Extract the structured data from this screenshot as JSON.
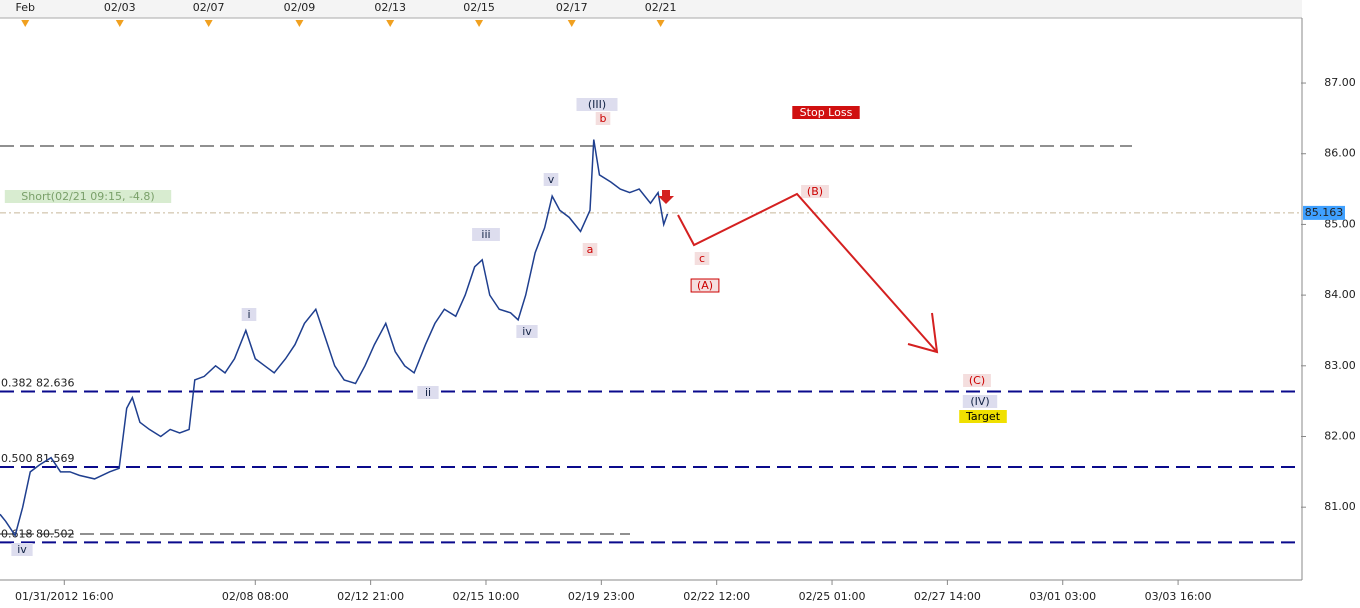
{
  "chart_data": {
    "type": "line",
    "x": [
      0,
      3,
      8,
      12,
      16,
      21,
      27,
      32,
      37,
      42,
      50,
      58,
      63,
      67,
      70,
      74,
      79,
      85,
      90,
      95,
      100,
      103,
      108,
      114,
      119,
      124,
      130,
      135,
      140,
      145,
      151,
      156,
      161,
      167,
      172,
      177,
      182,
      188,
      193,
      198,
      204,
      209,
      214,
      219,
      225,
      230,
      235,
      241,
      246,
      251,
      255,
      259,
      264,
      270,
      274,
      278,
      283,
      288,
      292,
      296,
      301,
      307,
      312,
      314,
      317,
      323,
      328,
      333,
      338,
      344,
      348,
      351,
      353
    ],
    "series": [
      {
        "color": "#1f3f8f",
        "values": [
          80.9,
          80.8,
          80.6,
          81.0,
          81.5,
          81.6,
          81.7,
          81.5,
          81.5,
          81.45,
          81.4,
          81.5,
          81.55,
          82.4,
          82.55,
          82.2,
          82.1,
          82.0,
          82.1,
          82.05,
          82.1,
          82.8,
          82.85,
          83.0,
          82.9,
          83.1,
          83.5,
          83.1,
          83.0,
          82.9,
          83.1,
          83.3,
          83.6,
          83.8,
          83.4,
          83.0,
          82.8,
          82.75,
          83.0,
          83.3,
          83.6,
          83.2,
          83.0,
          82.9,
          83.3,
          83.6,
          83.8,
          83.7,
          84.0,
          84.4,
          84.5,
          84.0,
          83.8,
          83.75,
          83.65,
          84.0,
          84.6,
          84.95,
          85.4,
          85.2,
          85.1,
          84.9,
          85.2,
          86.2,
          85.7,
          85.6,
          85.5,
          85.45,
          85.5,
          85.3,
          85.45,
          85.0,
          85.15
        ]
      }
    ],
    "xlim": [
      0,
      688
    ],
    "ylim": [
      79.97,
      87.92
    ],
    "yticks": [
      {
        "value": 81,
        "label": "81.00"
      },
      {
        "value": 82,
        "label": "82.00"
      },
      {
        "value": 83,
        "label": "83.00"
      },
      {
        "value": 84,
        "label": "84.00"
      },
      {
        "value": 85,
        "label": "85.00"
      },
      {
        "value": 86,
        "label": "86.00"
      },
      {
        "value": 87,
        "label": "87.00"
      }
    ],
    "xticks": [
      {
        "value": 34,
        "label": "01/31/2012 16:00"
      },
      {
        "value": 135,
        "label": "02/08 08:00"
      },
      {
        "value": 196,
        "label": "02/12 21:00"
      },
      {
        "value": 257,
        "label": "02/15 10:00"
      },
      {
        "value": 318,
        "label": "02/19 23:00"
      },
      {
        "value": 379,
        "label": "02/22 12:00"
      },
      {
        "value": 440,
        "label": "02/25 01:00"
      },
      {
        "value": 501,
        "label": "02/27 14:00"
      },
      {
        "value": 562,
        "label": "03/01 03:00"
      },
      {
        "value": 623,
        "label": "03/03 16:00"
      }
    ],
    "top_ticks": [
      {
        "value": 7,
        "label": "Feb"
      },
      {
        "value": 57,
        "label": "02/03"
      },
      {
        "value": 104,
        "label": "02/07"
      },
      {
        "value": 152,
        "label": "02/09"
      },
      {
        "value": 200,
        "label": "02/13"
      },
      {
        "value": 247,
        "label": "02/15"
      },
      {
        "value": 296,
        "label": "02/17"
      },
      {
        "value": 343,
        "label": "02/21"
      }
    ],
    "levels": [
      {
        "value": 82.636,
        "label": "0.382 82.636"
      },
      {
        "value": 81.569,
        "label": "0.500 81.569"
      },
      {
        "value": 80.502,
        "label": "0.618 80.502"
      }
    ],
    "current_price": {
      "value": 85.163,
      "label": "85.163"
    },
    "annotations": [
      "iv",
      "i",
      "ii",
      "iii",
      "iv",
      "v",
      "(III)",
      "b",
      "a",
      "c",
      "(A)",
      "(B)",
      "(C)",
      "(IV)",
      "Target",
      "Stop Loss",
      "Short(02/21 09:15, -4.8)"
    ]
  }
}
